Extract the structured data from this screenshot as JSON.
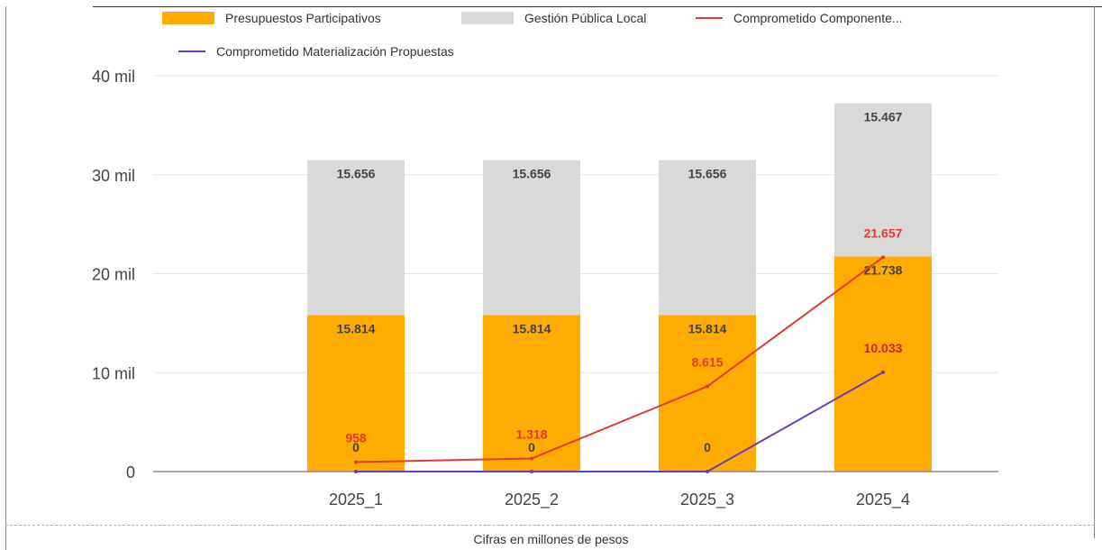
{
  "caption": "Cifras en millones de pesos",
  "colors": {
    "presupuestos": "#ffab00",
    "gestion": "#d9d9d9",
    "comprometido_componente": "#e53935",
    "comprometido_materializacion": "#6a3db8"
  },
  "chart_data": {
    "type": "bar",
    "stacked": true,
    "categories": [
      "2025_1",
      "2025_2",
      "2025_3",
      "2025_4"
    ],
    "y_tick_labels": [
      "0",
      "10 mil",
      "20 mil",
      "30 mil",
      "40 mil"
    ],
    "ylim": [
      0,
      40000
    ],
    "grid": true,
    "legend_position": "top",
    "series": [
      {
        "name": "Presupuestos Participativos",
        "type": "bar",
        "values": [
          15814,
          15814,
          15814,
          21738
        ],
        "labels": [
          "15.814",
          "15.814",
          "15.814",
          "21.738"
        ]
      },
      {
        "name": "Gestión Pública Local",
        "type": "bar",
        "values": [
          15656,
          15656,
          15656,
          15467
        ],
        "labels": [
          "15.656",
          "15.656",
          "15.656",
          "15.467"
        ]
      },
      {
        "name": "Comprometido Componente...",
        "type": "line",
        "values": [
          958,
          1318,
          8615,
          21657
        ],
        "labels": [
          "958",
          "1.318",
          "8.615",
          "21.657"
        ]
      },
      {
        "name": "Comprometido Materialización Propuestas",
        "type": "line",
        "values": [
          0,
          0,
          0,
          10033
        ],
        "labels": [
          "0",
          "0",
          "0",
          "10.033"
        ]
      }
    ]
  }
}
